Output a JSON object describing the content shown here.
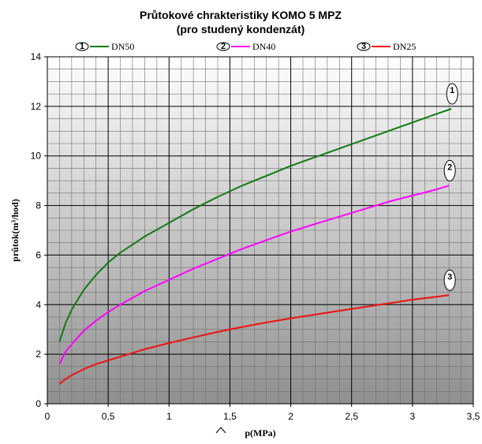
{
  "chart_data": {
    "type": "line",
    "title": "Průtokové chrakteristiky KOMO 5 MPZ",
    "subtitle": "(pro studený kondenzát)",
    "xlabel": "p(MPa)",
    "ylabel": "průtok(m³/hod)",
    "xlim": [
      0,
      3.5
    ],
    "ylim": [
      0,
      14
    ],
    "x_ticks": [
      "0",
      "0,5",
      "1",
      "1,5",
      "2",
      "2,5",
      "3",
      "3,5"
    ],
    "y_ticks": [
      "0",
      "2",
      "4",
      "6",
      "8",
      "10",
      "12",
      "14"
    ],
    "grid": true,
    "legend_position": "top",
    "series": [
      {
        "name": "DN50",
        "marker": "1",
        "color": "#117a11",
        "x": [
          0.1,
          0.15,
          0.2,
          0.3,
          0.4,
          0.5,
          0.6,
          0.8,
          1.0,
          1.2,
          1.4,
          1.6,
          1.8,
          2.0,
          2.2,
          2.4,
          2.6,
          2.8,
          3.0,
          3.2,
          3.32
        ],
        "values": [
          2.5,
          3.25,
          3.8,
          4.6,
          5.2,
          5.7,
          6.1,
          6.75,
          7.3,
          7.85,
          8.35,
          8.8,
          9.2,
          9.6,
          9.95,
          10.3,
          10.65,
          11.0,
          11.35,
          11.7,
          11.9
        ]
      },
      {
        "name": "DN40",
        "marker": "2",
        "color": "#ff00ff",
        "x": [
          0.1,
          0.15,
          0.2,
          0.3,
          0.4,
          0.5,
          0.6,
          0.8,
          1.0,
          1.2,
          1.4,
          1.6,
          1.8,
          2.0,
          2.2,
          2.4,
          2.6,
          2.8,
          3.0,
          3.2,
          3.3
        ],
        "values": [
          1.6,
          2.1,
          2.4,
          2.95,
          3.35,
          3.7,
          4.0,
          4.55,
          5.0,
          5.45,
          5.85,
          6.25,
          6.6,
          6.95,
          7.25,
          7.55,
          7.85,
          8.15,
          8.4,
          8.65,
          8.8
        ]
      },
      {
        "name": "DN25",
        "marker": "3",
        "color": "#ee1111",
        "x": [
          0.1,
          0.15,
          0.2,
          0.3,
          0.4,
          0.5,
          0.6,
          0.8,
          1.0,
          1.2,
          1.4,
          1.6,
          1.8,
          2.0,
          2.2,
          2.4,
          2.6,
          2.8,
          3.0,
          3.2,
          3.3
        ],
        "values": [
          0.8,
          1.0,
          1.15,
          1.4,
          1.6,
          1.75,
          1.9,
          2.2,
          2.45,
          2.68,
          2.9,
          3.1,
          3.28,
          3.45,
          3.6,
          3.75,
          3.9,
          4.05,
          4.2,
          4.32,
          4.38
        ]
      }
    ]
  }
}
